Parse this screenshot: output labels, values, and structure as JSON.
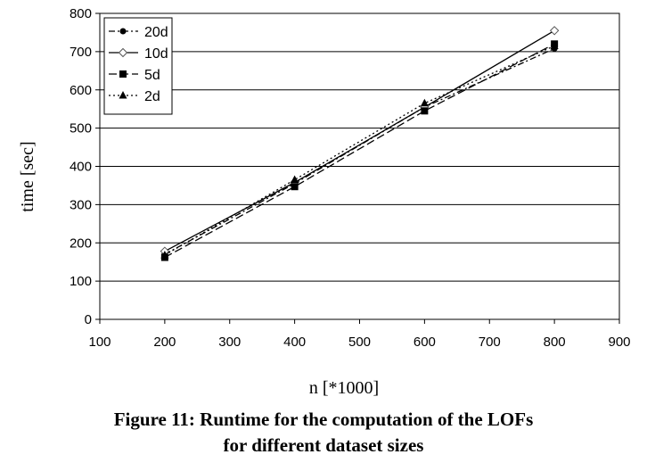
{
  "chart_data": {
    "type": "line",
    "title": "",
    "xlabel": "n [*1000]",
    "ylabel": "time [sec]",
    "xlim": [
      100,
      900
    ],
    "ylim": [
      0,
      800
    ],
    "x_ticks": [
      100,
      200,
      300,
      400,
      500,
      600,
      700,
      800,
      900
    ],
    "y_ticks": [
      0,
      100,
      200,
      300,
      400,
      500,
      600,
      700,
      800
    ],
    "grid": "horizontal",
    "legend_position": "top-left",
    "x": [
      200,
      400,
      600,
      800
    ],
    "series": [
      {
        "name": "20d",
        "values": [
          170,
          355,
          555,
          708
        ],
        "marker": "circle",
        "line_style": "dash-dot"
      },
      {
        "name": "10d",
        "values": [
          178,
          358,
          555,
          755
        ],
        "marker": "diamond",
        "line_style": "solid"
      },
      {
        "name": "5d",
        "values": [
          162,
          347,
          545,
          720
        ],
        "marker": "square",
        "line_style": "dashed"
      },
      {
        "name": "2d",
        "values": [
          168,
          365,
          565,
          715
        ],
        "marker": "triangle",
        "line_style": "dotted"
      }
    ]
  },
  "caption": {
    "line1": "Figure 11: Runtime for the computation of the LOFs",
    "line2": "for different dataset sizes"
  }
}
